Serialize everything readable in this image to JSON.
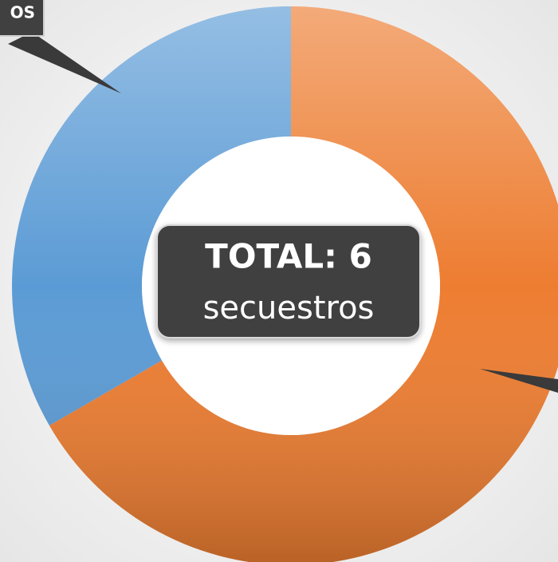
{
  "chart_data": {
    "type": "donut",
    "categories": [
      null,
      "OS"
    ],
    "values": [
      4,
      2
    ],
    "colors": [
      "#ed7d31",
      "#5b9bd5"
    ],
    "center_label": [
      "TOTAL: 6",
      "secuestros"
    ]
  }
}
